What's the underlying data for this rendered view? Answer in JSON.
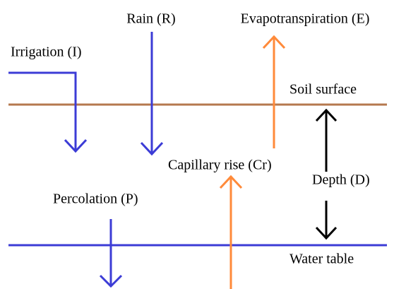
{
  "labels": {
    "rain": "Rain (R)",
    "evapotranspiration": "Evapotranspiration (E)",
    "irrigation": "Irrigation (I)",
    "soil_surface": "Soil surface",
    "capillary_rise": "Capillary rise (Cr)",
    "depth": "Depth (D)",
    "percolation": "Percolation (P)",
    "water_table": "Water table"
  }
}
